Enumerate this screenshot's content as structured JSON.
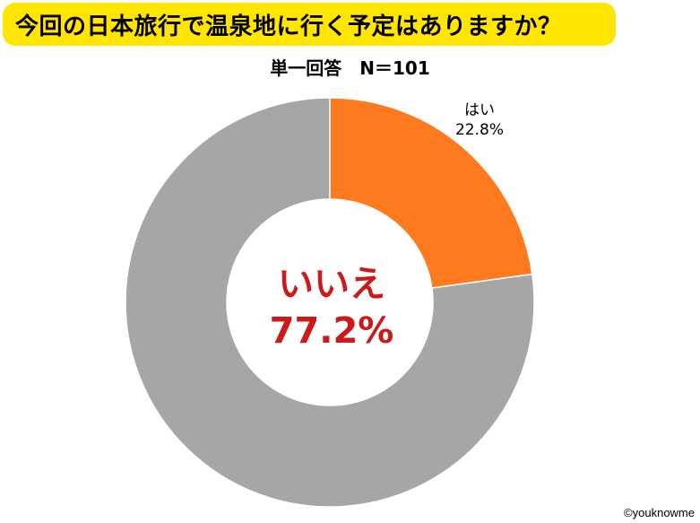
{
  "title": "今回の日本旅行で温泉地に行く予定はありますか？",
  "subtitle": "単一回答　N＝101",
  "credit": "©youknowme",
  "chart_data": {
    "type": "pie",
    "variant": "donut",
    "start": "12 o'clock, clockwise",
    "slices": [
      {
        "label": "はい",
        "value": 22.8,
        "value_label": "22.8%",
        "color": "#FF7A1F",
        "label_position": "outside",
        "label_color": "#000000"
      },
      {
        "label": "いいえ",
        "value": 77.2,
        "value_label": "77.2%",
        "color": "#A6A6A6",
        "label_position": "center",
        "label_color": "#CC1A1A"
      }
    ]
  }
}
